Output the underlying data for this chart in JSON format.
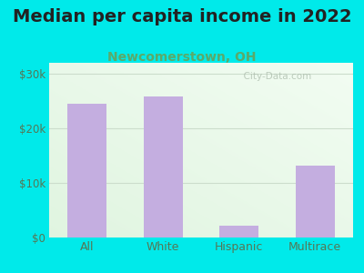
{
  "title": "Median per capita income in 2022",
  "subtitle": "Newcomerstown, OH",
  "categories": [
    "All",
    "White",
    "Hispanic",
    "Multirace"
  ],
  "values": [
    24500,
    25800,
    2200,
    13200
  ],
  "bar_color": "#c4aee0",
  "title_fontsize": 14,
  "subtitle_fontsize": 10,
  "subtitle_color": "#5aaa6a",
  "title_color": "#222222",
  "tick_label_color": "#557755",
  "ylim": [
    0,
    32000
  ],
  "yticks": [
    0,
    10000,
    20000,
    30000
  ],
  "ytick_labels": [
    "$0",
    "$10k",
    "$20k",
    "$30k"
  ],
  "bg_outer": "#00eaea",
  "watermark": "  City-Data.com",
  "grid_color": "#ccddcc",
  "bg_grad_top": "#e8f5e8",
  "bg_grad_bottom": "#f8fff8"
}
